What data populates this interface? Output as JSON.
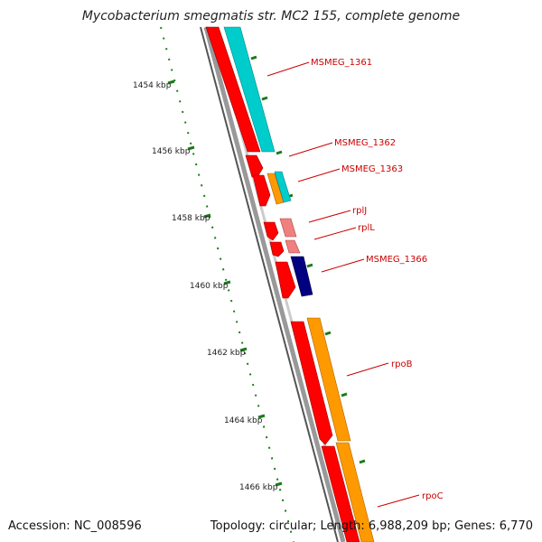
{
  "title": "Mycobacterium smegmatis str. MC2 155, complete genome",
  "footer": {
    "accession": "Accession: NC_008596",
    "stats": "Topology: circular; Length: 6,988,209 bp; Genes: 6,770"
  },
  "ruler": {
    "unit": "kbp",
    "labels": [
      "1454 kbp",
      "1456 kbp",
      "1458 kbp",
      "1460 kbp",
      "1462 kbp",
      "1464 kbp",
      "1466 kbp"
    ]
  },
  "colors": {
    "forward_cds": "#ff0000",
    "forward_cds_light": "#f08080",
    "cyan_feature": "#00cccc",
    "orange_feature": "#ff9900",
    "navy_feature": "#000080",
    "backbone": "#808080",
    "ruler": "#006600",
    "label": "#cc0000"
  },
  "gene_labels": [
    "MSMEG_1361",
    "MSMEG_1362",
    "MSMEG_1363",
    "rplJ",
    "rplL",
    "MSMEG_1366",
    "rpoB",
    "rpoC"
  ]
}
